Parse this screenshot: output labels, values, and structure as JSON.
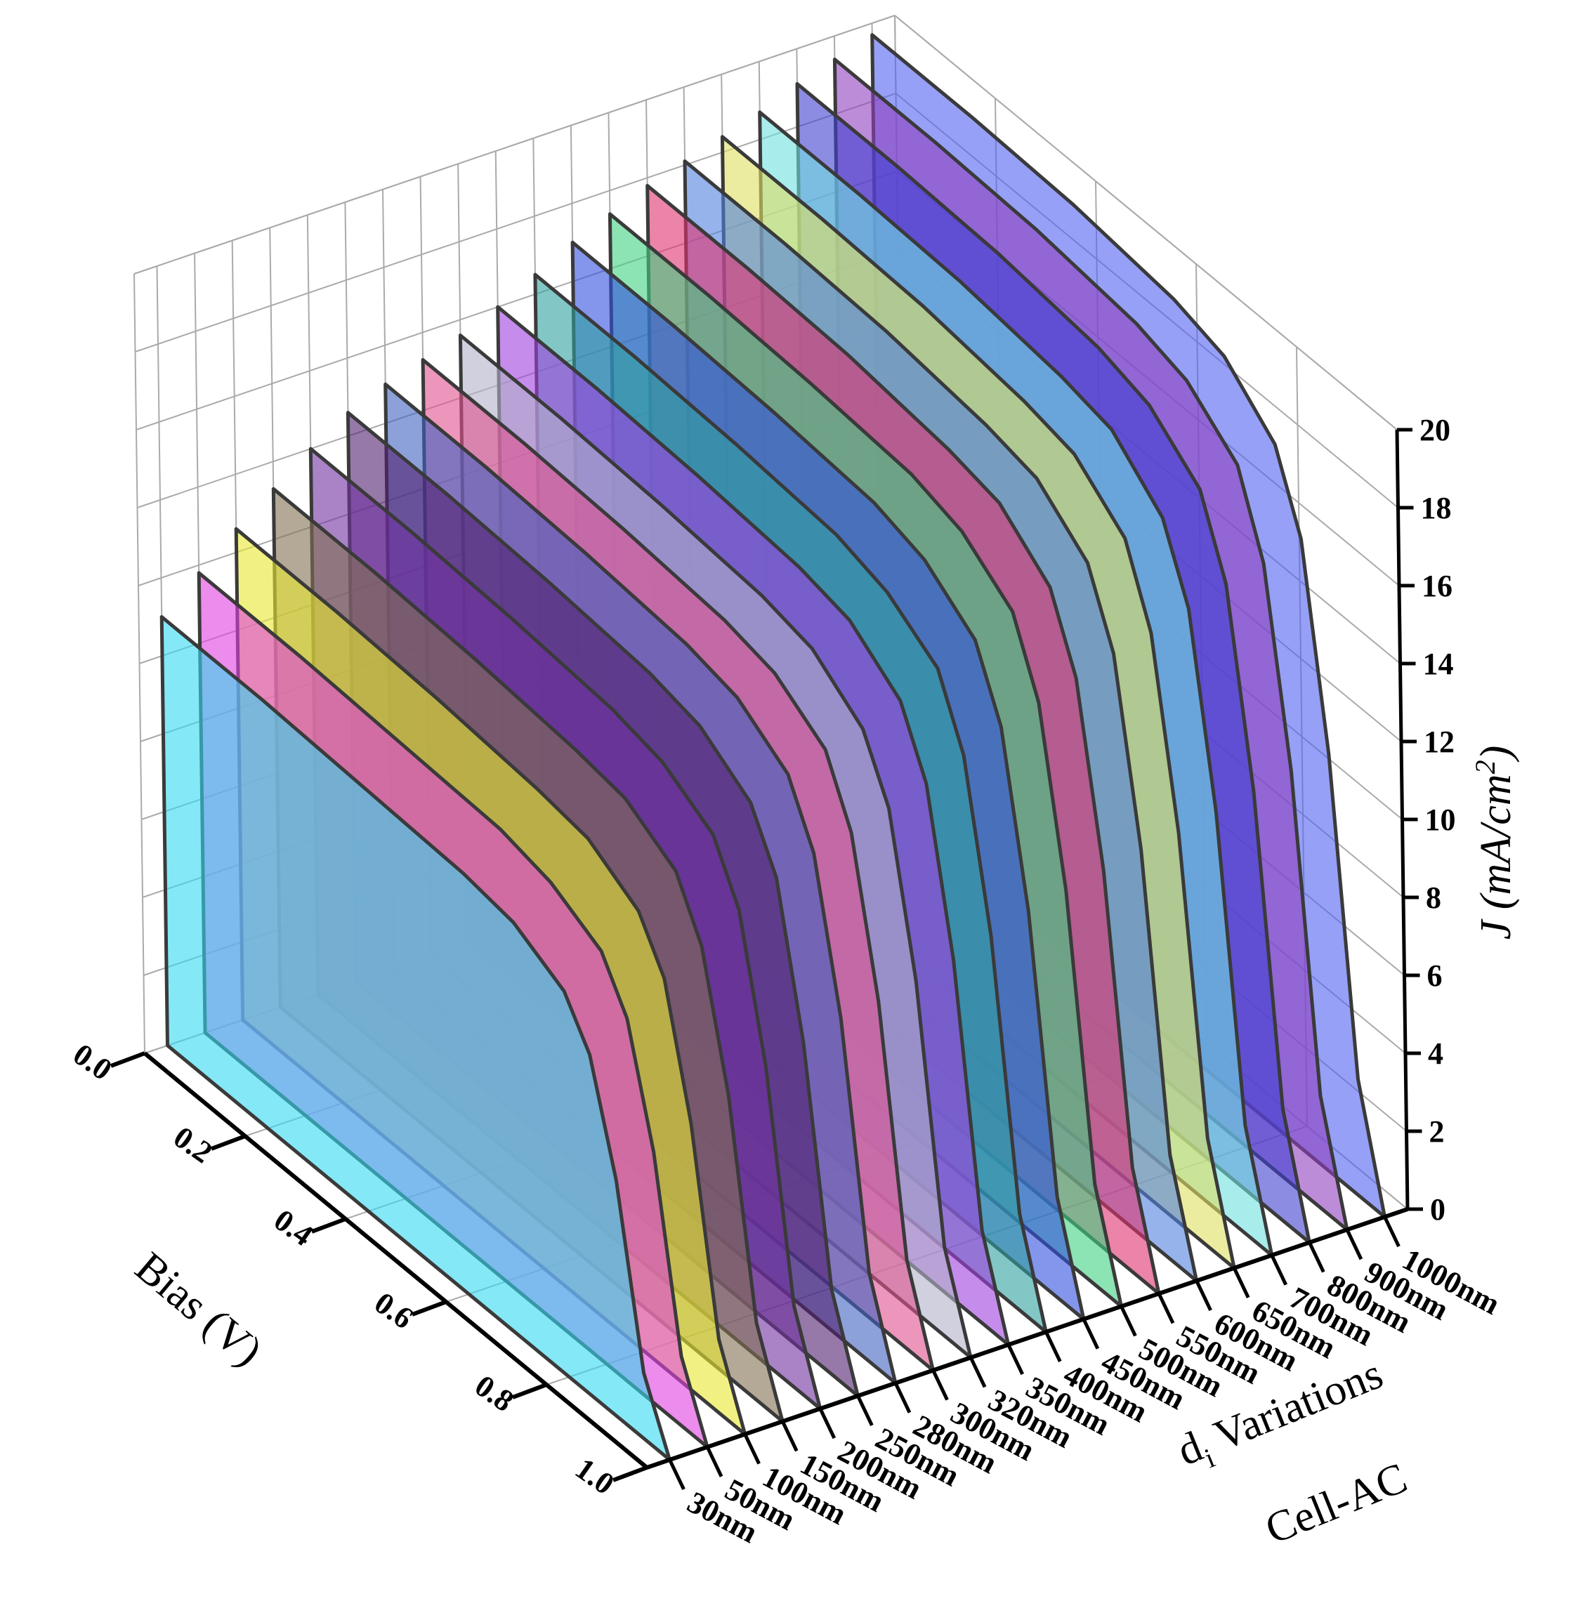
{
  "chart_data": {
    "type": "waterfall3d",
    "x_title": "Bias (V)",
    "y_title": [
      "J (mA/cm",
      "2",
      ")"
    ],
    "z_title": [
      "d",
      "i",
      " Variations"
    ],
    "subtitle": "Cell-AC",
    "x": [
      0,
      0.2,
      0.4,
      0.6,
      0.7,
      0.8,
      0.85,
      0.9,
      0.95,
      1.0
    ],
    "xlim": [
      0,
      1.0
    ],
    "xticks": [
      {
        "value": 0,
        "label": "0.0"
      },
      {
        "value": 0.2,
        "label": "0.2"
      },
      {
        "value": 0.4,
        "label": "0.4"
      },
      {
        "value": 0.6,
        "label": "0.6"
      },
      {
        "value": 0.8,
        "label": "0.8"
      },
      {
        "value": 1.0,
        "label": "1.0"
      }
    ],
    "ylim": [
      0,
      20
    ],
    "yticks": [
      0,
      2,
      4,
      6,
      8,
      10,
      12,
      14,
      16,
      18,
      20
    ],
    "grid": true,
    "series": [
      {
        "name": "30nm",
        "color": "#33d8f0",
        "values": [
          11,
          11,
          10.9,
          10.8,
          10.6,
          9.9,
          8.8,
          6.1,
          1.7,
          0
        ]
      },
      {
        "name": "50nm",
        "color": "#e040e0",
        "values": [
          11.8,
          11.8,
          11.7,
          11.6,
          11.3,
          10.6,
          9.4,
          6.5,
          1.8,
          0
        ]
      },
      {
        "name": "100nm",
        "color": "#e8e830",
        "values": [
          12.6,
          12.6,
          12.5,
          12.3,
          12.1,
          11.3,
          10.1,
          6.9,
          1.9,
          0
        ]
      },
      {
        "name": "150nm",
        "color": "#807050",
        "values": [
          13.3,
          13.3,
          13.2,
          13.0,
          12.8,
          12.0,
          10.6,
          7.3,
          2.0,
          0
        ]
      },
      {
        "name": "200nm",
        "color": "#7030a0",
        "values": [
          14,
          14,
          13.9,
          13.7,
          13.4,
          12.6,
          11.2,
          7.7,
          2.1,
          0
        ]
      },
      {
        "name": "250nm",
        "color": "#502070",
        "values": [
          14.6,
          14.6,
          14.5,
          14.3,
          14.0,
          13.1,
          11.7,
          8.0,
          2.2,
          0
        ]
      },
      {
        "name": "280nm",
        "color": "#4060c0",
        "values": [
          15,
          15,
          14.9,
          14.7,
          14.4,
          13.5,
          12.0,
          8.3,
          2.3,
          0
        ]
      },
      {
        "name": "300nm",
        "color": "#e05090",
        "values": [
          15.3,
          15.3,
          15.2,
          15.0,
          14.7,
          13.8,
          12.2,
          8.4,
          2.3,
          0
        ]
      },
      {
        "name": "320nm",
        "color": "#b0b0c8",
        "values": [
          15.6,
          15.6,
          15.5,
          15.3,
          15.0,
          14.0,
          12.5,
          8.6,
          2.3,
          0
        ]
      },
      {
        "name": "350nm",
        "color": "#a040e0",
        "values": [
          16,
          16,
          15.9,
          15.7,
          15.4,
          14.4,
          12.8,
          8.8,
          2.4,
          0
        ]
      },
      {
        "name": "400nm",
        "color": "#30a0a0",
        "values": [
          16.5,
          16.5,
          16.4,
          16.2,
          15.8,
          14.9,
          13.2,
          9.1,
          2.5,
          0
        ]
      },
      {
        "name": "450nm",
        "color": "#3050e0",
        "values": [
          17,
          17,
          16.9,
          16.7,
          16.3,
          15.3,
          13.6,
          9.4,
          2.6,
          0
        ]
      },
      {
        "name": "500nm",
        "color": "#40d080",
        "values": [
          17.4,
          17.4,
          17.3,
          17.1,
          16.7,
          15.7,
          13.9,
          9.6,
          2.6,
          0
        ]
      },
      {
        "name": "550nm",
        "color": "#e03070",
        "values": [
          17.8,
          17.8,
          17.7,
          17.4,
          17.1,
          16.0,
          14.2,
          9.8,
          2.7,
          0
        ]
      },
      {
        "name": "600nm",
        "color": "#5080e0",
        "values": [
          18.1,
          18.1,
          18.0,
          17.7,
          17.4,
          16.3,
          14.5,
          10.0,
          2.7,
          0
        ]
      },
      {
        "name": "650nm",
        "color": "#e0e060",
        "values": [
          18.4,
          18.4,
          18.3,
          18.0,
          17.7,
          16.6,
          14.7,
          10.1,
          2.8,
          0
        ]
      },
      {
        "name": "700nm",
        "color": "#70e0e0",
        "values": [
          18.7,
          18.7,
          18.6,
          18.3,
          18.0,
          16.8,
          15.0,
          10.3,
          2.8,
          0
        ]
      },
      {
        "name": "800nm",
        "color": "#4040d0",
        "values": [
          19.1,
          19.1,
          19.0,
          18.7,
          18.3,
          17.2,
          15.3,
          10.5,
          2.9,
          0
        ]
      },
      {
        "name": "900nm",
        "color": "#9040c0",
        "values": [
          19.4,
          19.4,
          19.3,
          19.0,
          18.6,
          17.5,
          15.5,
          10.7,
          2.9,
          0
        ]
      },
      {
        "name": "1000nm",
        "color": "#5060f0",
        "values": [
          19.7,
          19.7,
          19.6,
          19.3,
          18.9,
          17.7,
          15.8,
          10.8,
          3.0,
          0
        ]
      }
    ]
  }
}
